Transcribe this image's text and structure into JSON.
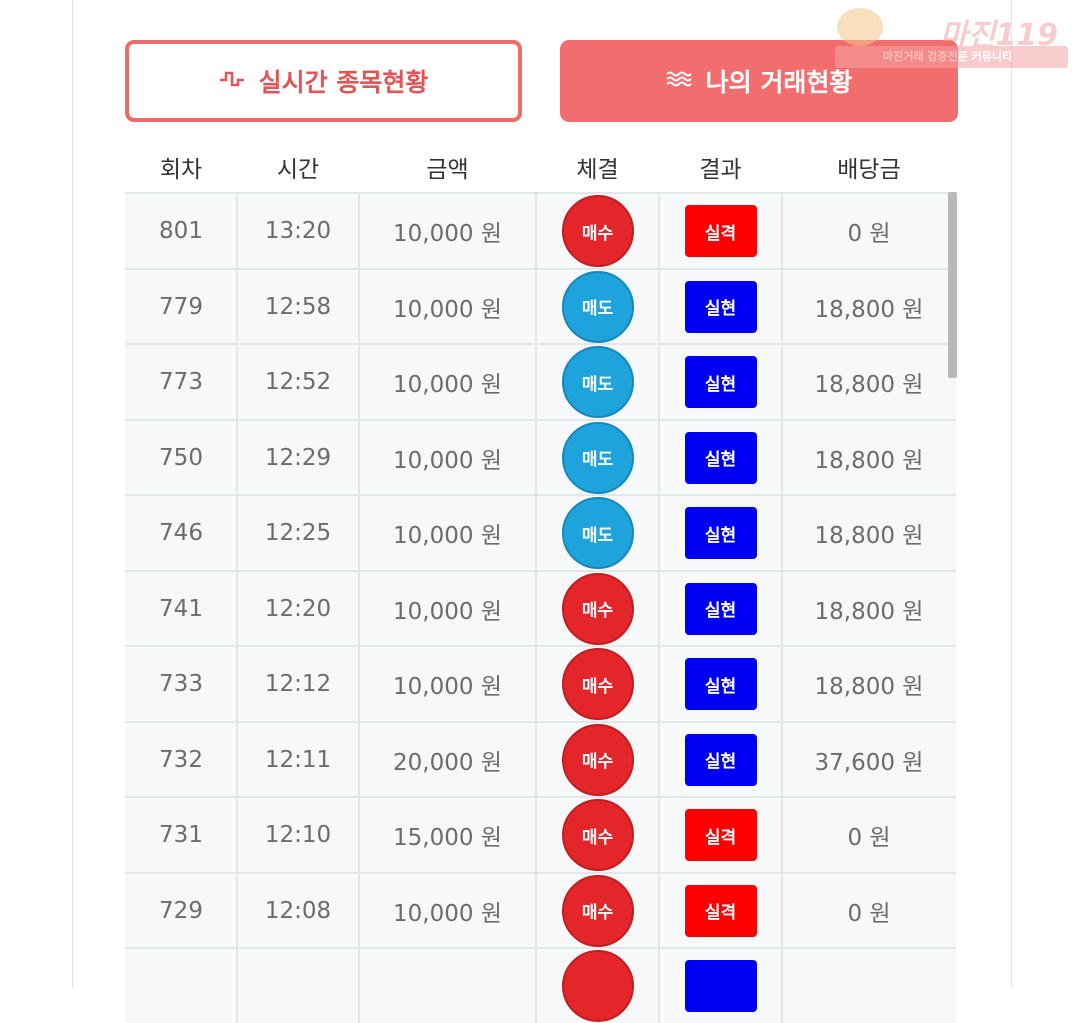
{
  "tabs": {
    "realtime_label": "실시간 종목현황",
    "realtime_icon": "pulse-icon",
    "mytrade_label": "나의 거래현황",
    "mytrade_icon": "waves-icon"
  },
  "watermark": {
    "main": "마진",
    "suffix": "119",
    "sub": "마진거래 검증전문 커뮤니티"
  },
  "table": {
    "headers": [
      "회차",
      "시간",
      "금액",
      "체결",
      "결과",
      "배당금"
    ],
    "rows": [
      {
        "round": "801",
        "time": "13:20",
        "amount": "10,000 원",
        "trade": "매수",
        "trade_type": "buy",
        "result": "실격",
        "result_type": "fail",
        "payout": "0 원"
      },
      {
        "round": "779",
        "time": "12:58",
        "amount": "10,000 원",
        "trade": "매도",
        "trade_type": "sell",
        "result": "실현",
        "result_type": "win",
        "payout": "18,800 원"
      },
      {
        "round": "773",
        "time": "12:52",
        "amount": "10,000 원",
        "trade": "매도",
        "trade_type": "sell",
        "result": "실현",
        "result_type": "win",
        "payout": "18,800 원"
      },
      {
        "round": "750",
        "time": "12:29",
        "amount": "10,000 원",
        "trade": "매도",
        "trade_type": "sell",
        "result": "실현",
        "result_type": "win",
        "payout": "18,800 원"
      },
      {
        "round": "746",
        "time": "12:25",
        "amount": "10,000 원",
        "trade": "매도",
        "trade_type": "sell",
        "result": "실현",
        "result_type": "win",
        "payout": "18,800 원"
      },
      {
        "round": "741",
        "time": "12:20",
        "amount": "10,000 원",
        "trade": "매수",
        "trade_type": "buy",
        "result": "실현",
        "result_type": "win",
        "payout": "18,800 원"
      },
      {
        "round": "733",
        "time": "12:12",
        "amount": "10,000 원",
        "trade": "매수",
        "trade_type": "buy",
        "result": "실현",
        "result_type": "win",
        "payout": "18,800 원"
      },
      {
        "round": "732",
        "time": "12:11",
        "amount": "20,000 원",
        "trade": "매수",
        "trade_type": "buy",
        "result": "실현",
        "result_type": "win",
        "payout": "37,600 원"
      },
      {
        "round": "731",
        "time": "12:10",
        "amount": "15,000 원",
        "trade": "매수",
        "trade_type": "buy",
        "result": "실격",
        "result_type": "fail",
        "payout": "0 원"
      },
      {
        "round": "729",
        "time": "12:08",
        "amount": "10,000 원",
        "trade": "매수",
        "trade_type": "buy",
        "result": "실격",
        "result_type": "fail",
        "payout": "0 원"
      },
      {
        "round": "",
        "time": "",
        "amount": "",
        "trade": "",
        "trade_type": "buy",
        "result": "",
        "result_type": "win",
        "payout": ""
      }
    ]
  },
  "colors": {
    "accent": "#f26e6e",
    "buy": "#e4262b",
    "sell": "#1ea3dc",
    "fail": "#ff0000",
    "win": "#0000f2"
  }
}
